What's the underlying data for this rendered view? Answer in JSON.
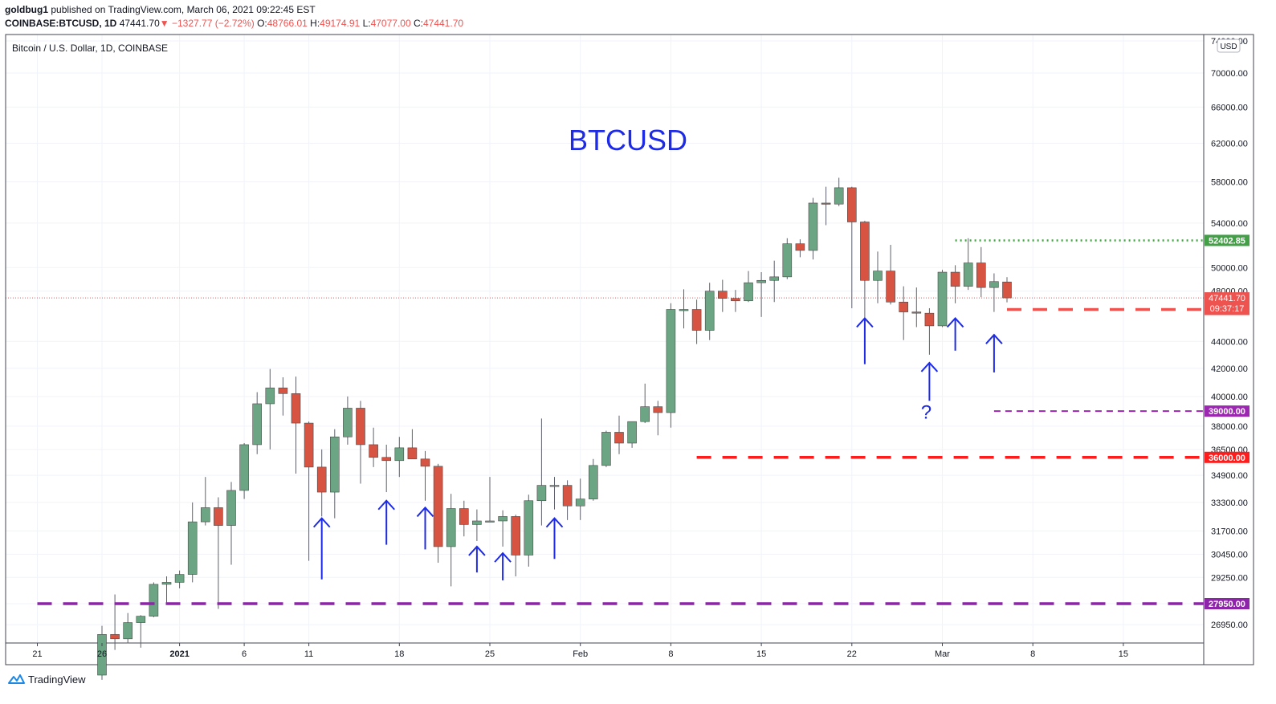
{
  "header": {
    "publisher": "goldbug1",
    "published_text": "published on TradingView.com, March 06, 2021 09:22:45 EST",
    "symbol": "COINBASE:BTCUSD, 1D",
    "last": "47441.70",
    "change": "−1327.77 (−2.72%)",
    "o_label": "O:",
    "o": "48766.01",
    "h_label": "H:",
    "h": "49174.91",
    "l_label": "L:",
    "l": "47077.00",
    "c_label": "C:",
    "c": "47441.70"
  },
  "chart_data": {
    "type": "candlestick",
    "title": "BTCUSD",
    "legend": "Bitcoin / U.S. Dollar, 1D, COINBASE",
    "currency": "USD",
    "scale": "log",
    "ylim": [
      26000,
      76000
    ],
    "y_ticks": [
      26950,
      27950,
      29250,
      30450,
      31700,
      33300,
      34900,
      36500,
      38000,
      40000,
      42000,
      44000,
      48000,
      50000,
      54000,
      58000,
      62000,
      66000,
      70000,
      74000
    ],
    "x_ticks": [
      {
        "label": "21",
        "date": "2020-12-21"
      },
      {
        "label": "26",
        "date": "2020-12-26"
      },
      {
        "label": "2021",
        "date": "2021-01-01"
      },
      {
        "label": "6",
        "date": "2021-01-06"
      },
      {
        "label": "11",
        "date": "2021-01-11"
      },
      {
        "label": "18",
        "date": "2021-01-18"
      },
      {
        "label": "25",
        "date": "2021-01-25"
      },
      {
        "label": "Feb",
        "date": "2021-02-01"
      },
      {
        "label": "8",
        "date": "2021-02-08"
      },
      {
        "label": "15",
        "date": "2021-02-15"
      },
      {
        "label": "22",
        "date": "2021-02-22"
      },
      {
        "label": "Mar",
        "date": "2021-03-01"
      },
      {
        "label": "8",
        "date": "2021-03-08"
      },
      {
        "label": "15",
        "date": "2021-03-15"
      }
    ],
    "candles": [
      {
        "d": "2020-12-26",
        "o": 24700,
        "h": 26900,
        "c": 26500,
        "l": 24500
      },
      {
        "d": "2020-12-27",
        "o": 26500,
        "h": 28400,
        "c": 26300,
        "l": 25800
      },
      {
        "d": "2020-12-28",
        "o": 26300,
        "h": 27500,
        "c": 27050,
        "l": 26100
      },
      {
        "d": "2020-12-29",
        "o": 27050,
        "h": 27400,
        "c": 27350,
        "l": 25900
      },
      {
        "d": "2020-12-30",
        "o": 27350,
        "h": 28999,
        "c": 28900,
        "l": 27300
      },
      {
        "d": "2020-12-31",
        "o": 28900,
        "h": 29300,
        "c": 29000,
        "l": 28000
      },
      {
        "d": "2021-01-01",
        "o": 29000,
        "h": 29600,
        "c": 29400,
        "l": 28700
      },
      {
        "d": "2021-01-02",
        "o": 29400,
        "h": 33300,
        "c": 32200,
        "l": 29000
      },
      {
        "d": "2021-01-03",
        "o": 32200,
        "h": 34800,
        "c": 33000,
        "l": 32000
      },
      {
        "d": "2021-01-04",
        "o": 33000,
        "h": 33600,
        "c": 32000,
        "l": 27700
      },
      {
        "d": "2021-01-05",
        "o": 32000,
        "h": 34500,
        "c": 34000,
        "l": 29900
      },
      {
        "d": "2021-01-06",
        "o": 34000,
        "h": 36900,
        "c": 36800,
        "l": 33500
      },
      {
        "d": "2021-01-07",
        "o": 36800,
        "h": 40300,
        "c": 39500,
        "l": 36200
      },
      {
        "d": "2021-01-08",
        "o": 39500,
        "h": 41950,
        "c": 40600,
        "l": 36500
      },
      {
        "d": "2021-01-09",
        "o": 40600,
        "h": 41350,
        "c": 40200,
        "l": 38700
      },
      {
        "d": "2021-01-10",
        "o": 40200,
        "h": 41400,
        "c": 38200,
        "l": 35000
      },
      {
        "d": "2021-01-11",
        "o": 38200,
        "h": 38300,
        "c": 35400,
        "l": 30100
      },
      {
        "d": "2021-01-12",
        "o": 35400,
        "h": 36500,
        "c": 33900,
        "l": 32500
      },
      {
        "d": "2021-01-13",
        "o": 33900,
        "h": 37800,
        "c": 37300,
        "l": 32400
      },
      {
        "d": "2021-01-14",
        "o": 37300,
        "h": 40000,
        "c": 39200,
        "l": 36800
      },
      {
        "d": "2021-01-15",
        "o": 39200,
        "h": 39700,
        "c": 36800,
        "l": 34400
      },
      {
        "d": "2021-01-16",
        "o": 36800,
        "h": 37900,
        "c": 36000,
        "l": 35400
      },
      {
        "d": "2021-01-17",
        "o": 36000,
        "h": 36800,
        "c": 35800,
        "l": 33900
      },
      {
        "d": "2021-01-18",
        "o": 35800,
        "h": 37300,
        "c": 36600,
        "l": 34800
      },
      {
        "d": "2021-01-19",
        "o": 36600,
        "h": 37800,
        "c": 35900,
        "l": 35900
      },
      {
        "d": "2021-01-20",
        "o": 35900,
        "h": 36400,
        "c": 35450,
        "l": 33400
      },
      {
        "d": "2021-01-21",
        "o": 35450,
        "h": 35600,
        "c": 30850,
        "l": 30000
      },
      {
        "d": "2021-01-22",
        "o": 30850,
        "h": 33800,
        "c": 32950,
        "l": 28800
      },
      {
        "d": "2021-01-23",
        "o": 32950,
        "h": 33400,
        "c": 32050,
        "l": 31400
      },
      {
        "d": "2021-01-24",
        "o": 32050,
        "h": 32900,
        "c": 32250,
        "l": 31150
      },
      {
        "d": "2021-01-25",
        "o": 32250,
        "h": 34800,
        "c": 32250,
        "l": 32200
      },
      {
        "d": "2021-01-26",
        "o": 32250,
        "h": 32850,
        "c": 32500,
        "l": 30850
      },
      {
        "d": "2021-01-27",
        "o": 32500,
        "h": 32600,
        "c": 30400,
        "l": 29300
      },
      {
        "d": "2021-01-28",
        "o": 30400,
        "h": 33750,
        "c": 33400,
        "l": 29800
      },
      {
        "d": "2021-01-29",
        "o": 33400,
        "h": 38500,
        "c": 34300,
        "l": 32000
      },
      {
        "d": "2021-01-30",
        "o": 34300,
        "h": 34800,
        "c": 34300,
        "l": 32900
      },
      {
        "d": "2021-01-31",
        "o": 34300,
        "h": 34600,
        "c": 33100,
        "l": 32300
      },
      {
        "d": "2021-02-01",
        "o": 33100,
        "h": 34700,
        "c": 33500,
        "l": 32300
      },
      {
        "d": "2021-02-02",
        "o": 33500,
        "h": 35900,
        "c": 35500,
        "l": 33400
      },
      {
        "d": "2021-02-03",
        "o": 35500,
        "h": 37700,
        "c": 37600,
        "l": 35400
      },
      {
        "d": "2021-02-04",
        "o": 37600,
        "h": 38700,
        "c": 36900,
        "l": 36200
      },
      {
        "d": "2021-02-05",
        "o": 36900,
        "h": 38300,
        "c": 38300,
        "l": 36600
      },
      {
        "d": "2021-02-06",
        "o": 38300,
        "h": 40900,
        "c": 39300,
        "l": 38200
      },
      {
        "d": "2021-02-07",
        "o": 39300,
        "h": 39700,
        "c": 38900,
        "l": 37400
      },
      {
        "d": "2021-02-08",
        "o": 38900,
        "h": 47000,
        "c": 46500,
        "l": 37900
      },
      {
        "d": "2021-02-09",
        "o": 46500,
        "h": 48150,
        "c": 46500,
        "l": 45000
      },
      {
        "d": "2021-02-10",
        "o": 46500,
        "h": 47300,
        "c": 44850,
        "l": 43800
      },
      {
        "d": "2021-02-11",
        "o": 44850,
        "h": 48700,
        "c": 48000,
        "l": 44100
      },
      {
        "d": "2021-02-12",
        "o": 48000,
        "h": 48950,
        "c": 47400,
        "l": 46300
      },
      {
        "d": "2021-02-13",
        "o": 47400,
        "h": 48100,
        "c": 47200,
        "l": 46300
      },
      {
        "d": "2021-02-14",
        "o": 47200,
        "h": 49700,
        "c": 48700,
        "l": 47100
      },
      {
        "d": "2021-02-15",
        "o": 48700,
        "h": 49600,
        "c": 48900,
        "l": 45900
      },
      {
        "d": "2021-02-16",
        "o": 48900,
        "h": 50600,
        "c": 49200,
        "l": 47100
      },
      {
        "d": "2021-02-17",
        "o": 49200,
        "h": 52600,
        "c": 52100,
        "l": 49000
      },
      {
        "d": "2021-02-18",
        "o": 52100,
        "h": 52500,
        "c": 51500,
        "l": 50900
      },
      {
        "d": "2021-02-19",
        "o": 51500,
        "h": 56400,
        "c": 55900,
        "l": 50700
      },
      {
        "d": "2021-02-20",
        "o": 55900,
        "h": 57500,
        "c": 55800,
        "l": 53800
      },
      {
        "d": "2021-02-21",
        "o": 55800,
        "h": 58400,
        "c": 57400,
        "l": 55600
      },
      {
        "d": "2021-02-22",
        "o": 57400,
        "h": 57500,
        "c": 54100,
        "l": 46600
      },
      {
        "d": "2021-02-23",
        "o": 54100,
        "h": 54200,
        "c": 48900,
        "l": 45000
      },
      {
        "d": "2021-02-24",
        "o": 48900,
        "h": 51400,
        "c": 49700,
        "l": 47000
      },
      {
        "d": "2021-02-25",
        "o": 49700,
        "h": 52000,
        "c": 47100,
        "l": 46900
      },
      {
        "d": "2021-02-26",
        "o": 47100,
        "h": 48400,
        "c": 46300,
        "l": 44100
      },
      {
        "d": "2021-02-27",
        "o": 46300,
        "h": 48300,
        "c": 46200,
        "l": 45100
      },
      {
        "d": "2021-02-28",
        "o": 46200,
        "h": 46600,
        "c": 45200,
        "l": 43000
      },
      {
        "d": "2021-03-01",
        "o": 45200,
        "h": 49800,
        "c": 49600,
        "l": 45100
      },
      {
        "d": "2021-03-02",
        "o": 49600,
        "h": 50200,
        "c": 48400,
        "l": 47000
      },
      {
        "d": "2021-03-03",
        "o": 48400,
        "h": 52600,
        "c": 50400,
        "l": 48100
      },
      {
        "d": "2021-03-04",
        "o": 50400,
        "h": 51800,
        "c": 48300,
        "l": 47500
      },
      {
        "d": "2021-03-05",
        "o": 48300,
        "h": 49500,
        "c": 48800,
        "l": 46300
      },
      {
        "d": "2021-03-06",
        "o": 48766.01,
        "h": 49174.91,
        "c": 47441.7,
        "l": 47077
      }
    ],
    "levels": [
      {
        "value": 52402.85,
        "label": "52402.85",
        "color": "#43a047",
        "style": "dotted",
        "from": "2021-03-02"
      },
      {
        "value": 46500,
        "label": "46500.00",
        "color": "#ef5350",
        "style": "dashed-thick",
        "from": "2021-03-06"
      },
      {
        "value": 39000,
        "label": "39000.00",
        "color": "#9c27b0",
        "style": "dashed",
        "from": "2021-03-05"
      },
      {
        "value": 36000,
        "label": "36000.00",
        "color": "#ff1c1c",
        "style": "dashed-thick",
        "from": "2021-02-10"
      },
      {
        "value": 27950,
        "label": "27950.00",
        "color": "#8e24aa",
        "style": "dashed-thick",
        "from": "2020-12-21"
      }
    ],
    "last_price": {
      "value": 47441.7,
      "label": "47441.70",
      "countdown": "09:37:17",
      "color": "#ef5350"
    },
    "arrows": [
      {
        "date": "2021-01-12",
        "top": 32400,
        "bottom": 29150
      },
      {
        "date": "2021-01-17",
        "top": 33400,
        "bottom": 30950
      },
      {
        "date": "2021-01-20",
        "top": 33000,
        "bottom": 30700
      },
      {
        "date": "2021-01-24",
        "top": 30850,
        "bottom": 29500
      },
      {
        "date": "2021-01-26",
        "top": 30500,
        "bottom": 29100
      },
      {
        "date": "2021-01-30",
        "top": 32400,
        "bottom": 30200
      },
      {
        "date": "2021-02-23",
        "top": 45800,
        "bottom": 42300
      },
      {
        "date": "2021-02-28",
        "top": 42400,
        "bottom": 39700
      },
      {
        "date": "2021-03-02",
        "top": 45800,
        "bottom": 43300
      },
      {
        "date": "2021-03-05",
        "top": 44500,
        "bottom": 41700
      }
    ],
    "annotations": [
      {
        "text": "?",
        "date": "2021-02-28",
        "value": 38500
      }
    ],
    "colors": {
      "up": "#6ba583",
      "down": "#d75442",
      "wick": "#5d606b",
      "arrow": "#1d2ae6",
      "title": "#1d2ae6"
    }
  },
  "footer": {
    "brand": "TradingView"
  }
}
